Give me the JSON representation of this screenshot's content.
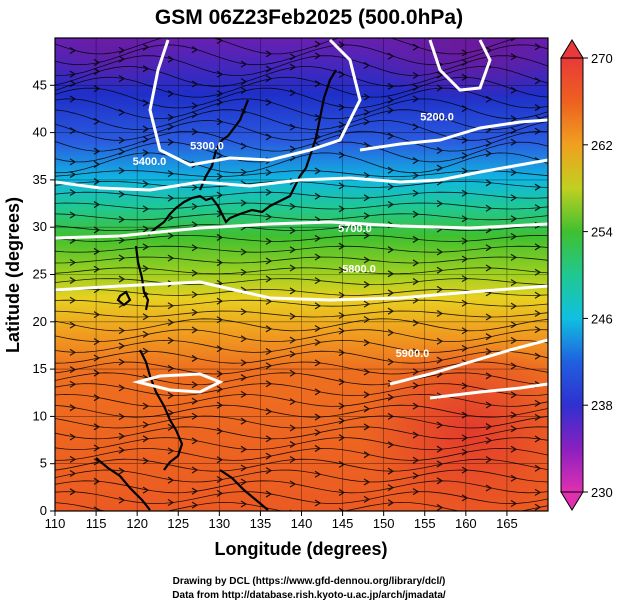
{
  "title": "GSM 06Z23Feb2025 (500.0hPa)",
  "xlabel": "Longitude (degrees)",
  "ylabel": "Latitude (degrees)",
  "credits": [
    "Drawing by DCL (https://www.gfd-dennou.org/library/dcl/)",
    "Data from http://database.rish.kyoto-u.ac.jp/arch/jmadata/"
  ],
  "chart_data": {
    "type": "heatmap",
    "xlim": [
      110,
      170
    ],
    "ylim": [
      0,
      50
    ],
    "xticks": [
      "110",
      "115",
      "120",
      "125",
      "130",
      "135",
      "140",
      "145",
      "150",
      "155",
      "160",
      "165"
    ],
    "yticks": [
      "0",
      "5",
      "10",
      "15",
      "20",
      "25",
      "30",
      "35",
      "40",
      "45"
    ],
    "grid": true,
    "colorbar": {
      "min": 230,
      "max": 270,
      "ticks": [
        "230",
        "238",
        "246",
        "254",
        "262",
        "270"
      ],
      "placement": "right"
    },
    "contours": [
      {
        "label": "5200.0",
        "lon": 156.5,
        "lat": 41.3
      },
      {
        "label": "5300.0",
        "lon": 128.5,
        "lat": 38.2
      },
      {
        "label": "5400.0",
        "lon": 121.5,
        "lat": 36.6
      },
      {
        "label": "5700.0",
        "lon": 146.5,
        "lat": 29.5
      },
      {
        "label": "5800.0",
        "lon": 147,
        "lat": 25.2
      },
      {
        "label": "5900.0",
        "lon": 153.5,
        "lat": 16.3
      }
    ]
  },
  "colors": {
    "purple": "#7a1fa0",
    "blue": "#1f2fd0",
    "cyan": "#10c0e0",
    "green": "#40c030",
    "yellow": "#e0d020",
    "orange": "#ee6a20",
    "red": "#e8402a"
  }
}
